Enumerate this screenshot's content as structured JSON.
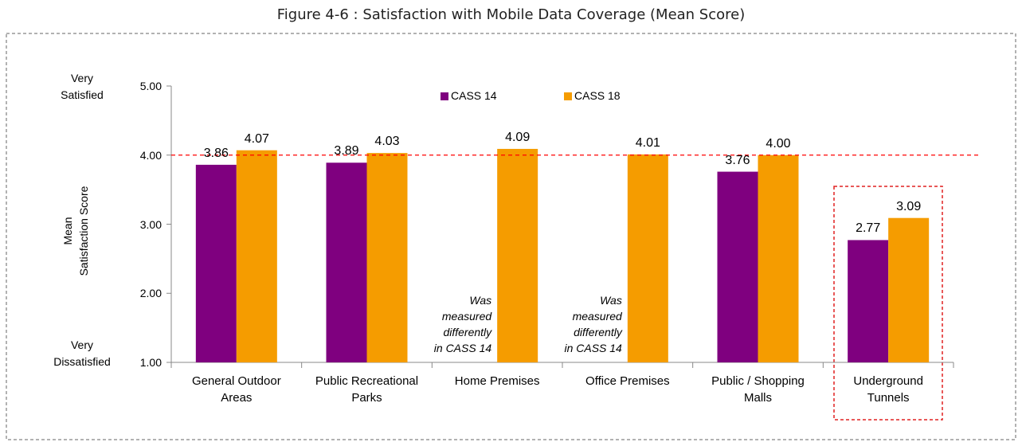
{
  "chart_data": {
    "type": "bar",
    "title": "Figure 4-6 : Satisfaction with Mobile Data Coverage (Mean Score)",
    "y_label": "Mean\nSatisfaction Score",
    "y_top_label": "Very\nSatisfied",
    "y_bottom_label": "Very\nDissatisfied",
    "categories": [
      "General Outdoor\nAreas",
      "Public Recreational\nParks",
      "Home Premises",
      "Office Premises",
      "Public / Shopping\nMalls",
      "Underground\nTunnels"
    ],
    "series": [
      {
        "name": "CASS 14",
        "color": "#7f007f",
        "values": [
          3.86,
          3.89,
          null,
          null,
          3.76,
          2.77
        ],
        "value_labels": [
          "3.86",
          "3.89",
          null,
          null,
          "3.76",
          "2.77"
        ]
      },
      {
        "name": "CASS 18",
        "color": "#f59c00",
        "values": [
          4.07,
          4.03,
          4.09,
          4.01,
          4.0,
          3.09
        ],
        "value_labels": [
          "4.07",
          "4.03",
          "4.09",
          "4.01",
          "4.00",
          "3.09"
        ]
      }
    ],
    "annotations": [
      "Was\nmeasured\ndifferently\nin CASS 14",
      "Was\nmeasured\ndifferently\nin CASS 14"
    ],
    "ylim": [
      1,
      5
    ],
    "yticks": [
      {
        "value": 1,
        "label": "1.00"
      },
      {
        "value": 2,
        "label": "2.00"
      },
      {
        "value": 3,
        "label": "3.00"
      },
      {
        "value": 4,
        "label": "4.00"
      },
      {
        "value": 5,
        "label": "5.00"
      }
    ],
    "reference_line": 4,
    "reference_color": "#ff0000",
    "grid": false,
    "legend": "top"
  }
}
